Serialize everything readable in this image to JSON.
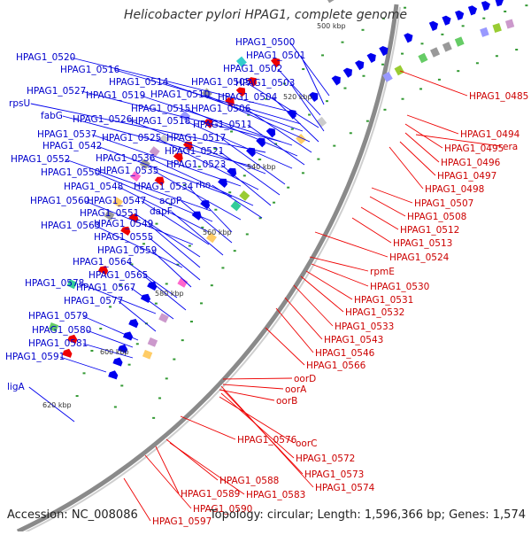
{
  "title": "Helicobacter pylori HPAG1, complete genome",
  "footer": {
    "accession": "Accession: NC_008086",
    "summary": "Topology: circular; Length: 1,596,366 bp; Genes: 1,574"
  },
  "colors": {
    "forward": "#0000ee",
    "reverse": "#ee0000",
    "backbone": "#8a8a8a",
    "tick": "#339933"
  },
  "kbp_marks": [
    {
      "id": "k500",
      "label": "500 kbp"
    },
    {
      "id": "k520",
      "label": "520 kbp"
    },
    {
      "id": "k540",
      "label": "540 kbp"
    },
    {
      "id": "k560",
      "label": "560 kbp"
    },
    {
      "id": "k580",
      "label": "580 kbp"
    },
    {
      "id": "k600",
      "label": "600 kbp"
    },
    {
      "id": "k620",
      "label": "620 kbp"
    }
  ],
  "labels_blue": [
    "HPAG1_0500",
    "HPAG1_0520",
    "HPAG1_0501",
    "HPAG1_0516",
    "HPAG1_0502",
    "HPAG1_0514",
    "HPAG1_0505",
    "HPAG1_0503",
    "HPAG1_0527",
    "HPAG1_0519",
    "HPAG1_0510",
    "HPAG1_0504",
    "rpsU",
    "HPAG1_0515",
    "HPAG1_0506",
    "fabG",
    "HPAG1_0526",
    "HPAG1_0518",
    "HPAG1_0511",
    "HPAG1_0537",
    "HPAG1_0525",
    "HPAG1_0517",
    "HPAG1_0542",
    "HPAG1_0521",
    "HPAG1_0552",
    "HPAG1_0536",
    "HPAG1_0523",
    "HPAG1_0550",
    "HPAG1_0535",
    "rho",
    "HPAG1_0548",
    "HPAG1_0534",
    "HPAG1_0560",
    "HPAG1_0547",
    "acpP",
    "HPAG1_0551",
    "dapF",
    "HPAG1_0563",
    "HPAG1_0549",
    "HPAG1_0555",
    "HPAG1_0559",
    "HPAG1_0564",
    "HPAG1_0565",
    "HPAG1_0578",
    "HPAG1_0567",
    "HPAG1_0577",
    "HPAG1_0579",
    "HPAG1_0580",
    "HPAG1_0581",
    "HPAG1_0591",
    "ligA"
  ],
  "labels_red": [
    "HPAG1_0485",
    "HPAG1_0494",
    "HPAG1_0495",
    "era",
    "HPAG1_0496",
    "HPAG1_0497",
    "HPAG1_0498",
    "HPAG1_0507",
    "HPAG1_0508",
    "HPAG1_0512",
    "HPAG1_0513",
    "HPAG1_0524",
    "rpmE",
    "HPAG1_0530",
    "HPAG1_0531",
    "HPAG1_0532",
    "HPAG1_0533",
    "HPAG1_0543",
    "HPAG1_0546",
    "HPAG1_0566",
    "oorD",
    "oorA",
    "oorB",
    "oorC",
    "HPAG1_0576",
    "HPAG1_0572",
    "HPAG1_0573",
    "HPAG1_0574",
    "HPAG1_0588",
    "HPAG1_0589",
    "HPAG1_0583",
    "HPAG1_0590",
    "HPAG1_0597"
  ]
}
